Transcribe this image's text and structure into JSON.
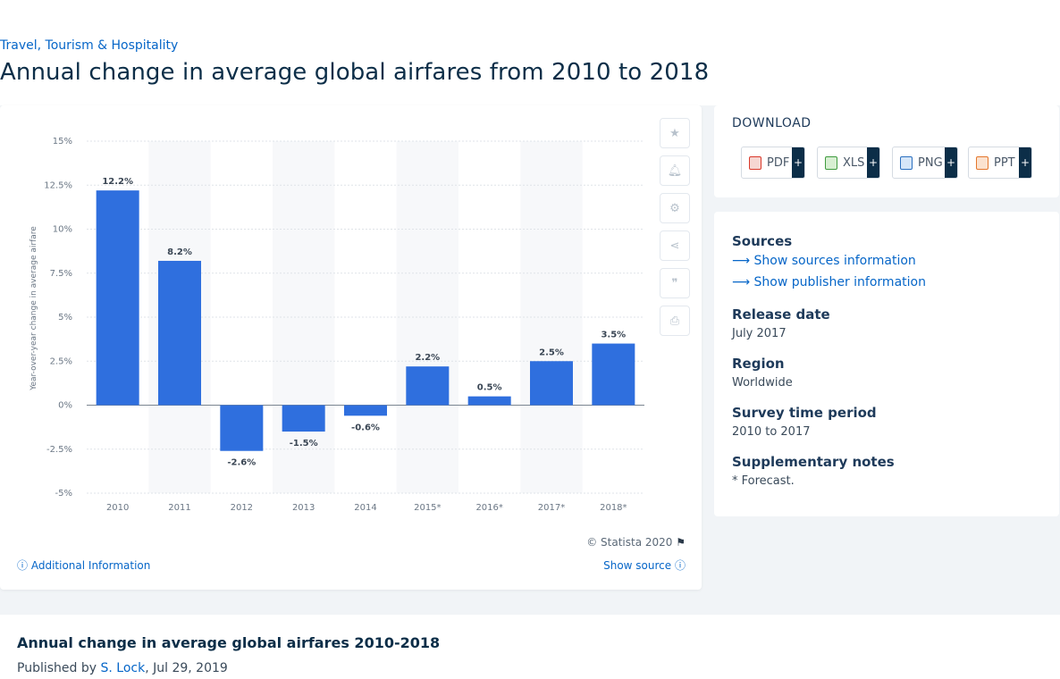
{
  "breadcrumb": "Travel, Tourism & Hospitality",
  "page_title": "Annual change in average global airfares from 2010 to 2018",
  "chart_data": {
    "type": "bar",
    "categories": [
      "2010",
      "2011",
      "2012",
      "2013",
      "2014",
      "2015*",
      "2016*",
      "2017*",
      "2018*"
    ],
    "values": [
      12.2,
      8.2,
      -2.6,
      -1.5,
      -0.6,
      2.2,
      0.5,
      2.5,
      3.5
    ],
    "value_labels": [
      "12.2%",
      "8.2%",
      "-2.6%",
      "-1.5%",
      "-0.6%",
      "2.2%",
      "0.5%",
      "2.5%",
      "3.5%"
    ],
    "ylabel": "Year-over-year change in average airfare",
    "ylim": [
      -5,
      15
    ],
    "yticks": [
      -5,
      -2.5,
      0,
      2.5,
      5,
      7.5,
      10,
      12.5,
      15
    ],
    "ytick_labels": [
      "-5%",
      "-2.5%",
      "0%",
      "2.5%",
      "5%",
      "7.5%",
      "10%",
      "12.5%",
      "15%"
    ],
    "grid": true,
    "bar_color": "#2f6fde"
  },
  "chart_footer": {
    "copyright": "© Statista 2020",
    "additional_info": "Additional Information",
    "show_source": "Show source"
  },
  "tools": [
    "star-icon",
    "bell-icon",
    "gear-icon",
    "share-icon",
    "quote-icon",
    "print-icon"
  ],
  "download": {
    "title": "DOWNLOAD",
    "buttons": [
      {
        "label": "PDF",
        "color": "#d9392b"
      },
      {
        "label": "XLS",
        "color": "#3f9b3f"
      },
      {
        "label": "PNG",
        "color": "#2b6fbf"
      },
      {
        "label": "PPT",
        "color": "#e4772d"
      }
    ],
    "plus": "+"
  },
  "info": {
    "sources_heading": "Sources",
    "show_sources": "Show sources information",
    "show_publisher": "Show publisher information",
    "release_heading": "Release date",
    "release_value": "July 2017",
    "region_heading": "Region",
    "region_value": "Worldwide",
    "survey_heading": "Survey time period",
    "survey_value": "2010 to 2017",
    "notes_heading": "Supplementary notes",
    "notes_value": "* Forecast."
  },
  "bottom": {
    "title": "Annual change in average global airfares 2010-2018",
    "published_prefix": "Published by",
    "author": "S. Lock",
    "date": ", Jul 29, 2019"
  }
}
